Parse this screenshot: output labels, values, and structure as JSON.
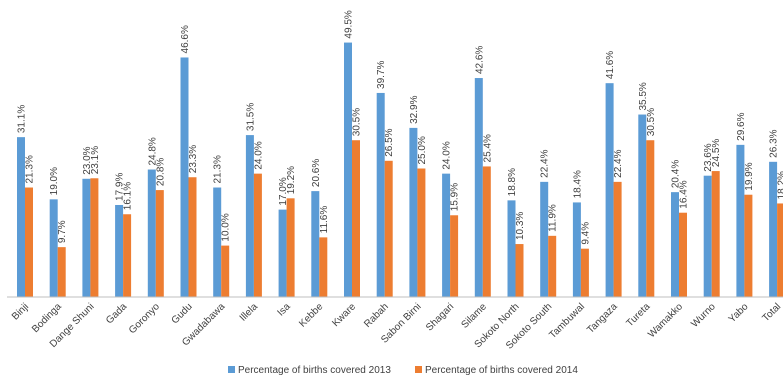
{
  "chart_data": {
    "type": "bar",
    "title": "",
    "xlabel": "",
    "ylabel": "",
    "ylim": [
      0,
      55
    ],
    "grid": false,
    "legend_position": "bottom",
    "categories": [
      "Binji",
      "Bodinga",
      "Dange Shuni",
      "Gada",
      "Goronyo",
      "Gudu",
      "Gwadabawa",
      "Illela",
      "Isa",
      "Kebbe",
      "Kware",
      "Rabah",
      "Sabon Birni",
      "Shagari",
      "Silame",
      "Sokoto North",
      "Sokoto South",
      "Tambuwal",
      "Tangaza",
      "Tureta",
      "Wamakko",
      "Wurno",
      "Yabo",
      "Total"
    ],
    "series": [
      {
        "name": "Percentage of births covered 2013",
        "color": "#5B9BD5",
        "values": [
          31.1,
          19.0,
          23.0,
          17.9,
          24.8,
          46.6,
          21.3,
          31.5,
          17.0,
          20.6,
          49.5,
          39.7,
          32.9,
          24.0,
          42.6,
          18.8,
          22.4,
          18.4,
          41.6,
          35.5,
          20.4,
          23.6,
          29.6,
          26.3
        ],
        "labels": [
          "31.1%",
          "19.0%",
          "23.0%",
          "17.9%",
          "24.8%",
          "46.6%",
          "21.3%",
          "31.5%",
          "17.0%",
          "20.6%",
          "49.5%",
          "39.7%",
          "32.9%",
          "24.0%",
          "42.6%",
          "18.8%",
          "22.4%",
          "18.4%",
          "41.6%",
          "35.5%",
          "20.4%",
          "23.6%",
          "29.6%",
          "26.3%"
        ]
      },
      {
        "name": "Percentage of births covered 2014",
        "color": "#ED7D31",
        "values": [
          21.3,
          9.7,
          23.1,
          16.1,
          20.8,
          23.3,
          10.0,
          24.0,
          19.2,
          11.6,
          30.5,
          26.5,
          25.0,
          15.9,
          25.4,
          10.3,
          11.9,
          9.4,
          22.4,
          30.5,
          16.4,
          24.5,
          19.9,
          18.2
        ],
        "labels": [
          "21.3%",
          "9.7%",
          "23.1%",
          "16.1%",
          "20.8%",
          "23.3%",
          "10.0%",
          "24.0%",
          "19.2%",
          "11.6%",
          "30.5%",
          "26.5%",
          "25.0%",
          "15.9%",
          "25.4%",
          "10.3%",
          "11.9%",
          "9.4%",
          "22.4%",
          "30.5%",
          "16.4%",
          "24.5%",
          "19.9%",
          "18.2%"
        ]
      }
    ]
  }
}
